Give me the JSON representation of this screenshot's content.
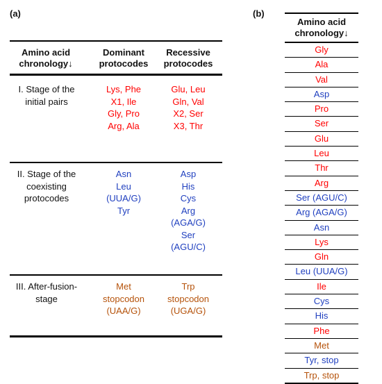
{
  "panel_a": {
    "label": "(a)",
    "headers": {
      "col1": "Amino acid chronology↓",
      "col2": "Dominant protocodes",
      "col3": "Recessive protocodes"
    },
    "stages": [
      {
        "name": "I. Stage of the initial pairs",
        "dominant": [
          "Lys, Phe",
          "X1, Ile",
          "Gly, Pro",
          "Arg, Ala"
        ],
        "recessive": [
          "Glu, Leu",
          "Gln, Val",
          "X2, Ser",
          "X3, Thr"
        ],
        "color": "#ff0000"
      },
      {
        "name": "II. Stage of the coexisting protocodes",
        "dominant": [
          "Asn",
          "Leu",
          "(UUA/G)",
          "Tyr"
        ],
        "recessive": [
          "Asp",
          "His",
          "Cys",
          "Arg",
          "(AGA/G)",
          "Ser",
          "(AGU/C)"
        ],
        "color": "#1f3fbf"
      },
      {
        "name": "III. After-fusion-stage",
        "dominant": [
          "Met",
          "stopcodon",
          "(UAA/G)"
        ],
        "recessive": [
          "Trp",
          "stopcodon",
          "(UGA/G)"
        ],
        "color": "#b5520a"
      }
    ]
  },
  "panel_b": {
    "label": "(b)",
    "header": "Amino acid chronology↓",
    "rows": [
      {
        "text": "Gly",
        "color": "#ff0000"
      },
      {
        "text": "Ala",
        "color": "#ff0000"
      },
      {
        "text": "Val",
        "color": "#ff0000"
      },
      {
        "text": "Asp",
        "color": "#1f3fbf"
      },
      {
        "text": "Pro",
        "color": "#ff0000"
      },
      {
        "text": "Ser",
        "color": "#ff0000"
      },
      {
        "text": "Glu",
        "color": "#ff0000"
      },
      {
        "text": "Leu",
        "color": "#ff0000"
      },
      {
        "text": "Thr",
        "color": "#ff0000"
      },
      {
        "text": "Arg",
        "color": "#ff0000"
      },
      {
        "text": "Ser (AGU/C)",
        "color": "#1f3fbf"
      },
      {
        "text": "Arg (AGA/G)",
        "color": "#1f3fbf"
      },
      {
        "text": "Asn",
        "color": "#1f3fbf"
      },
      {
        "text": "Lys",
        "color": "#ff0000"
      },
      {
        "text": "Gln",
        "color": "#ff0000"
      },
      {
        "text": "Leu (UUA/G)",
        "color": "#1f3fbf"
      },
      {
        "text": "Ile",
        "color": "#ff0000"
      },
      {
        "text": "Cys",
        "color": "#1f3fbf"
      },
      {
        "text": "His",
        "color": "#1f3fbf"
      },
      {
        "text": "Phe",
        "color": "#ff0000"
      },
      {
        "text": "Met",
        "color": "#b5520a"
      },
      {
        "text": "Tyr, stop",
        "color": "#1f3fbf"
      },
      {
        "text": "Trp, stop",
        "color": "#b5520a"
      }
    ]
  }
}
